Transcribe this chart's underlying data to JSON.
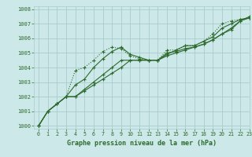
{
  "title": "Graphe pression niveau de la mer (hPa)",
  "bg_color": "#cce8e8",
  "grid_color": "#aacccc",
  "line_color": "#2d6a2d",
  "xlim": [
    -0.5,
    23
  ],
  "ylim": [
    999.8,
    1008.2
  ],
  "yticks": [
    1000,
    1001,
    1002,
    1003,
    1004,
    1005,
    1006,
    1007,
    1008
  ],
  "xticks": [
    0,
    1,
    2,
    3,
    4,
    5,
    6,
    7,
    8,
    9,
    10,
    11,
    12,
    13,
    14,
    15,
    16,
    17,
    18,
    19,
    20,
    21,
    22,
    23
  ],
  "series": [
    [
      1000.0,
      1001.0,
      1001.5,
      1002.0,
      1003.8,
      1004.0,
      1004.5,
      1005.1,
      1005.4,
      1005.3,
      1004.8,
      1004.6,
      1004.5,
      1004.5,
      1005.2,
      1005.2,
      1005.5,
      1005.5,
      1005.8,
      1006.3,
      1007.0,
      1007.2,
      1007.3,
      1007.4
    ],
    [
      1000.0,
      1001.0,
      1001.5,
      1002.0,
      1002.0,
      1002.5,
      1003.0,
      1003.5,
      1004.0,
      1004.5,
      1004.5,
      1004.5,
      1004.5,
      1004.5,
      1005.0,
      1005.1,
      1005.3,
      1005.4,
      1005.6,
      1005.9,
      1006.3,
      1006.7,
      1007.2,
      1007.4
    ],
    [
      1000.0,
      1001.0,
      1001.5,
      1002.0,
      1002.0,
      1002.4,
      1002.8,
      1003.2,
      1003.6,
      1004.0,
      1004.5,
      1004.5,
      1004.5,
      1004.5,
      1004.8,
      1005.0,
      1005.2,
      1005.4,
      1005.6,
      1005.9,
      1006.3,
      1006.6,
      1007.2,
      1007.5
    ],
    [
      1000.0,
      1001.0,
      1001.5,
      1002.0,
      1002.8,
      1003.2,
      1004.0,
      1004.6,
      1005.1,
      1005.4,
      1004.9,
      1004.7,
      1004.5,
      1004.5,
      1004.9,
      1005.2,
      1005.5,
      1005.5,
      1005.8,
      1006.1,
      1006.7,
      1007.0,
      1007.3,
      1007.4
    ]
  ],
  "line_styles": [
    "dotted",
    "solid",
    "solid",
    "solid"
  ]
}
